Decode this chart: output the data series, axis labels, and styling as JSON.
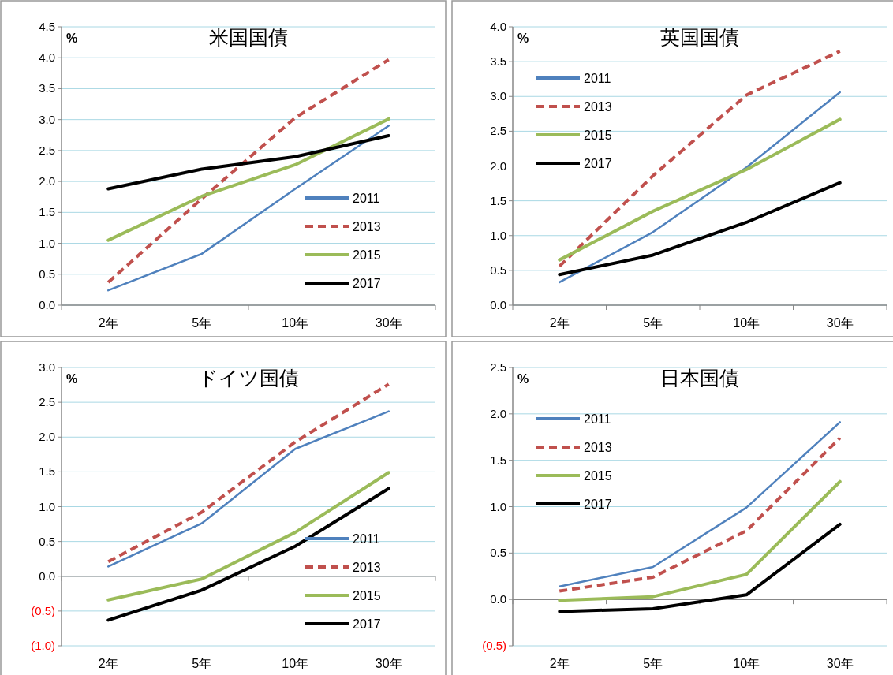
{
  "chart_data": [
    {
      "type": "line",
      "title": "米国国債",
      "ylabel": "%",
      "categories": [
        "2年",
        "5年",
        "10年",
        "30年"
      ],
      "ylim": [
        0,
        4.5
      ],
      "yticks": [
        {
          "value": 0,
          "label": "0.0"
        },
        {
          "value": 0.5,
          "label": "0.5"
        },
        {
          "value": 1,
          "label": "1.0"
        },
        {
          "value": 1.5,
          "label": "1.5"
        },
        {
          "value": 2,
          "label": "2.0"
        },
        {
          "value": 2.5,
          "label": "2.5"
        },
        {
          "value": 3,
          "label": "3.0"
        },
        {
          "value": 3.5,
          "label": "3.5"
        },
        {
          "value": 4,
          "label": "4.0"
        },
        {
          "value": 4.5,
          "label": "4.5"
        }
      ],
      "grid": "y",
      "legend": "bottom right",
      "series": [
        {
          "name": "2011",
          "color": "#4f81bd",
          "values": [
            0.24,
            0.83,
            1.88,
            2.9
          ]
        },
        {
          "name": "2013",
          "color": "#c0504d",
          "line_style": "dashed",
          "values": [
            0.37,
            1.72,
            3.03,
            3.97
          ]
        },
        {
          "name": "2015",
          "color": "#9bbb59",
          "values": [
            1.05,
            1.76,
            2.27,
            3.01
          ]
        },
        {
          "name": "2017",
          "color": "#000000",
          "values": [
            1.88,
            2.2,
            2.4,
            2.74
          ]
        }
      ]
    },
    {
      "type": "line",
      "title": "英国国債",
      "ylabel": "%",
      "categories": [
        "2年",
        "5年",
        "10年",
        "30年"
      ],
      "ylim": [
        0,
        4
      ],
      "yticks": [
        {
          "value": 0,
          "label": "0.0"
        },
        {
          "value": 0.5,
          "label": "0.5"
        },
        {
          "value": 1,
          "label": "1.0"
        },
        {
          "value": 1.5,
          "label": "1.5"
        },
        {
          "value": 2,
          "label": "2.0"
        },
        {
          "value": 2.5,
          "label": "2.5"
        },
        {
          "value": 3,
          "label": "3.0"
        },
        {
          "value": 3.5,
          "label": "3.5"
        },
        {
          "value": 4,
          "label": "4.0"
        }
      ],
      "grid": "y",
      "legend": "top left",
      "series": [
        {
          "name": "2011",
          "color": "#4f81bd",
          "values": [
            0.33,
            1.05,
            1.98,
            3.06
          ]
        },
        {
          "name": "2013",
          "color": "#c0504d",
          "line_style": "dashed",
          "values": [
            0.56,
            1.86,
            3.02,
            3.65
          ]
        },
        {
          "name": "2015",
          "color": "#9bbb59",
          "values": [
            0.65,
            1.35,
            1.95,
            2.67
          ]
        },
        {
          "name": "2017",
          "color": "#000000",
          "values": [
            0.44,
            0.72,
            1.19,
            1.76
          ]
        }
      ]
    },
    {
      "type": "line",
      "title": "ドイツ国債",
      "ylabel": "%",
      "categories": [
        "2年",
        "5年",
        "10年",
        "30年"
      ],
      "ylim": [
        -1,
        3
      ],
      "yticks": [
        {
          "value": -1,
          "label": "(1.0)"
        },
        {
          "value": -0.5,
          "label": "(0.5)"
        },
        {
          "value": 0,
          "label": "0.0"
        },
        {
          "value": 0.5,
          "label": "0.5"
        },
        {
          "value": 1,
          "label": "1.0"
        },
        {
          "value": 1.5,
          "label": "1.5"
        },
        {
          "value": 2,
          "label": "2.0"
        },
        {
          "value": 2.5,
          "label": "2.5"
        },
        {
          "value": 3,
          "label": "3.0"
        }
      ],
      "grid": "y",
      "legend": "bottom right",
      "series": [
        {
          "name": "2011",
          "color": "#4f81bd",
          "values": [
            0.14,
            0.76,
            1.83,
            2.37
          ]
        },
        {
          "name": "2013",
          "color": "#c0504d",
          "line_style": "dashed",
          "values": [
            0.21,
            0.92,
            1.93,
            2.76
          ]
        },
        {
          "name": "2015",
          "color": "#9bbb59",
          "values": [
            -0.34,
            -0.04,
            0.63,
            1.49
          ]
        },
        {
          "name": "2017",
          "color": "#000000",
          "values": [
            -0.63,
            -0.2,
            0.43,
            1.26
          ]
        }
      ]
    },
    {
      "type": "line",
      "title": "日本国債",
      "ylabel": "%",
      "categories": [
        "2年",
        "5年",
        "10年",
        "30年"
      ],
      "ylim": [
        -0.5,
        2.5
      ],
      "yticks": [
        {
          "value": -0.5,
          "label": "(0.5)"
        },
        {
          "value": 0,
          "label": "0.0"
        },
        {
          "value": 0.5,
          "label": "0.5"
        },
        {
          "value": 1,
          "label": "1.0"
        },
        {
          "value": 1.5,
          "label": "1.5"
        },
        {
          "value": 2,
          "label": "2.0"
        },
        {
          "value": 2.5,
          "label": "2.5"
        }
      ],
      "grid": "y",
      "legend": "top left",
      "series": [
        {
          "name": "2011",
          "color": "#4f81bd",
          "values": [
            0.14,
            0.35,
            0.99,
            1.91
          ]
        },
        {
          "name": "2013",
          "color": "#c0504d",
          "line_style": "dashed",
          "values": [
            0.09,
            0.24,
            0.74,
            1.74
          ]
        },
        {
          "name": "2015",
          "color": "#9bbb59",
          "values": [
            -0.01,
            0.03,
            0.27,
            1.27
          ]
        },
        {
          "name": "2017",
          "color": "#000000",
          "values": [
            -0.13,
            -0.1,
            0.05,
            0.81
          ]
        }
      ]
    }
  ]
}
